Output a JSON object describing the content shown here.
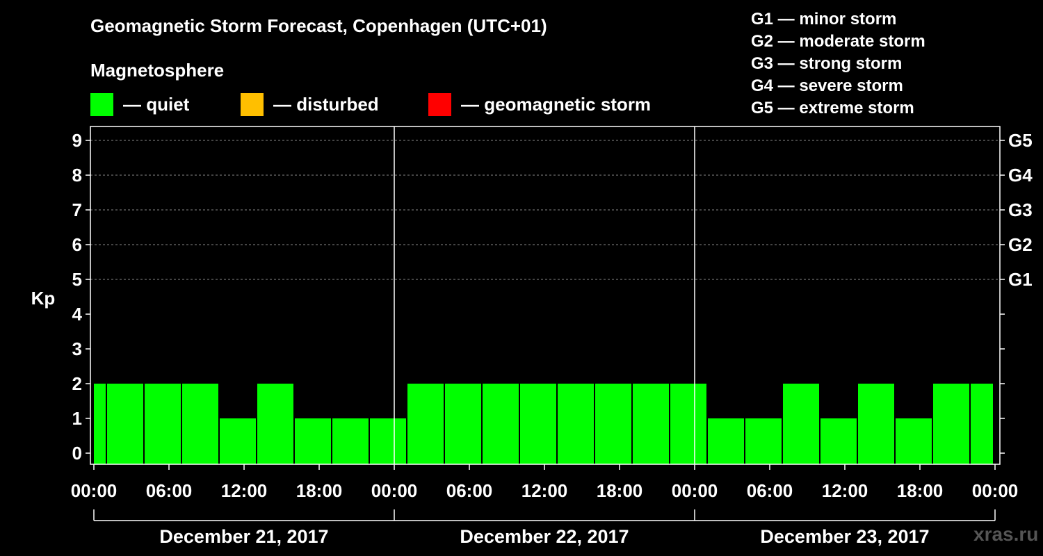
{
  "header": {
    "title": "Geomagnetic Storm Forecast, Copenhagen (UTC+01)",
    "subtitle": "Magnetosphere"
  },
  "legend": {
    "quiet": {
      "label": "— quiet",
      "color": "#00ff00"
    },
    "disturbed": {
      "label": "— disturbed",
      "color": "#ffbf00"
    },
    "storm": {
      "label": "— geomagnetic storm",
      "color": "#ff0000"
    }
  },
  "g_legend": [
    "G1 — minor storm",
    "G2 — moderate storm",
    "G3 — strong storm",
    "G4 — severe storm",
    "G5 — extreme storm"
  ],
  "watermark": "xras.ru",
  "chart_data": {
    "type": "bar",
    "title": "Geomagnetic Storm Forecast, Copenhagen (UTC+01)",
    "ylabel": "Kp",
    "xlabel": "",
    "ylim": [
      0,
      9
    ],
    "yticks": [
      "0",
      "1",
      "2",
      "3",
      "4",
      "5",
      "6",
      "7",
      "8",
      "9"
    ],
    "right_axis": [
      {
        "kp": 5,
        "label": "G1"
      },
      {
        "kp": 6,
        "label": "G2"
      },
      {
        "kp": 7,
        "label": "G3"
      },
      {
        "kp": 8,
        "label": "G4"
      },
      {
        "kp": 9,
        "label": "G5"
      }
    ],
    "grid": true,
    "x_range_hours": [
      0,
      72
    ],
    "bar_width_hours": 3,
    "bars": [
      {
        "start_h": -2,
        "value": 2
      },
      {
        "start_h": 1,
        "value": 2
      },
      {
        "start_h": 4,
        "value": 2
      },
      {
        "start_h": 7,
        "value": 2
      },
      {
        "start_h": 10,
        "value": 1
      },
      {
        "start_h": 13,
        "value": 2
      },
      {
        "start_h": 16,
        "value": 1
      },
      {
        "start_h": 19,
        "value": 1
      },
      {
        "start_h": 22,
        "value": 1
      },
      {
        "start_h": 25,
        "value": 2
      },
      {
        "start_h": 28,
        "value": 2
      },
      {
        "start_h": 31,
        "value": 2
      },
      {
        "start_h": 34,
        "value": 2
      },
      {
        "start_h": 37,
        "value": 2
      },
      {
        "start_h": 40,
        "value": 2
      },
      {
        "start_h": 43,
        "value": 2
      },
      {
        "start_h": 46,
        "value": 2
      },
      {
        "start_h": 49,
        "value": 1
      },
      {
        "start_h": 52,
        "value": 1
      },
      {
        "start_h": 55,
        "value": 2
      },
      {
        "start_h": 58,
        "value": 1
      },
      {
        "start_h": 61,
        "value": 2
      },
      {
        "start_h": 64,
        "value": 1
      },
      {
        "start_h": 67,
        "value": 2
      },
      {
        "start_h": 70,
        "value": 2
      }
    ],
    "bar_status": "quiet",
    "xticks": [
      {
        "h": 0,
        "label": "00:00"
      },
      {
        "h": 6,
        "label": "06:00"
      },
      {
        "h": 12,
        "label": "12:00"
      },
      {
        "h": 18,
        "label": "18:00"
      },
      {
        "h": 24,
        "label": "00:00"
      },
      {
        "h": 30,
        "label": "06:00"
      },
      {
        "h": 36,
        "label": "12:00"
      },
      {
        "h": 42,
        "label": "18:00"
      },
      {
        "h": 48,
        "label": "00:00"
      },
      {
        "h": 54,
        "label": "06:00"
      },
      {
        "h": 60,
        "label": "12:00"
      },
      {
        "h": 66,
        "label": "18:00"
      },
      {
        "h": 72,
        "label": "00:00"
      }
    ],
    "day_separators_h": [
      24,
      48
    ],
    "days": [
      {
        "start_h": 0,
        "end_h": 24,
        "label": "December 21, 2017"
      },
      {
        "start_h": 24,
        "end_h": 48,
        "label": "December 22, 2017"
      },
      {
        "start_h": 48,
        "end_h": 72,
        "label": "December 23, 2017"
      }
    ]
  }
}
